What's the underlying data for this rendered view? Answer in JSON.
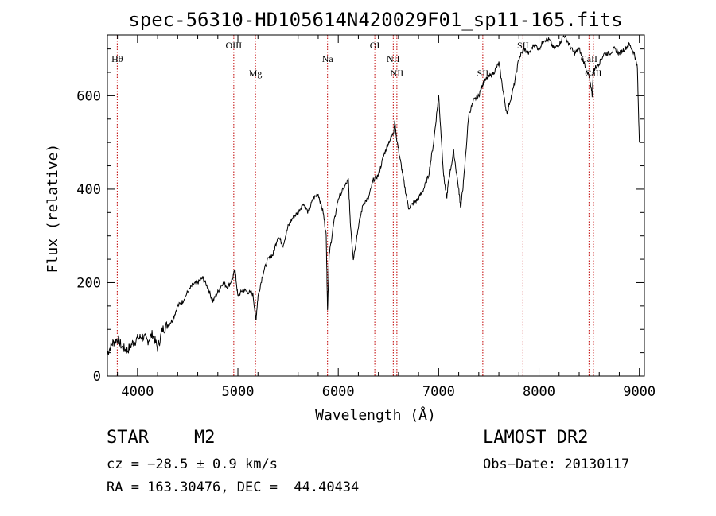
{
  "chart_data": {
    "type": "line",
    "title": "spec-56310-HD105614N420029F01_sp11-165.fits",
    "xlabel": "Wavelength (Å)",
    "ylabel": "Flux (relative)",
    "xlim": [
      3700,
      9050
    ],
    "ylim": [
      0,
      730
    ],
    "xticks": [
      4000,
      5000,
      6000,
      7000,
      8000,
      9000
    ],
    "yticks": [
      0,
      200,
      400,
      600
    ],
    "grid": false,
    "series": [
      {
        "x": [
          3700,
          3750,
          3800,
          3850,
          3900,
          3950,
          4000,
          4050,
          4100,
          4150,
          4200,
          4250,
          4300,
          4350,
          4400,
          4450,
          4500,
          4550,
          4600,
          4650,
          4700,
          4750,
          4800,
          4850,
          4900,
          4950,
          4970,
          5000,
          5050,
          5100,
          5150,
          5180,
          5200,
          5250,
          5300,
          5350,
          5400,
          5450,
          5500,
          5550,
          5600,
          5650,
          5700,
          5750,
          5800,
          5850,
          5880,
          5893,
          5910,
          5950,
          6000,
          6050,
          6100,
          6120,
          6150,
          6200,
          6250,
          6300,
          6350,
          6400,
          6450,
          6500,
          6550,
          6563,
          6580,
          6620,
          6650,
          6700,
          6750,
          6800,
          6850,
          6900,
          6950,
          7000,
          7050,
          7080,
          7100,
          7150,
          7200,
          7220,
          7250,
          7300,
          7350,
          7400,
          7430,
          7450,
          7500,
          7550,
          7600,
          7650,
          7680,
          7700,
          7750,
          7800,
          7850,
          7900,
          7950,
          8000,
          8050,
          8100,
          8150,
          8200,
          8250,
          8300,
          8350,
          8400,
          8450,
          8500,
          8530,
          8540,
          8560,
          8600,
          8650,
          8700,
          8750,
          8800,
          8850,
          8900,
          8950,
          8980,
          9000
        ],
        "y": [
          50,
          70,
          80,
          60,
          55,
          70,
          80,
          85,
          75,
          90,
          60,
          100,
          110,
          120,
          150,
          160,
          180,
          195,
          200,
          210,
          190,
          160,
          180,
          200,
          190,
          210,
          230,
          170,
          185,
          180,
          175,
          120,
          170,
          220,
          250,
          260,
          300,
          280,
          320,
          340,
          350,
          370,
          350,
          380,
          390,
          350,
          300,
          140,
          260,
          320,
          380,
          400,
          420,
          330,
          250,
          320,
          370,
          380,
          420,
          430,
          470,
          500,
          520,
          545,
          510,
          460,
          420,
          360,
          370,
          380,
          400,
          430,
          500,
          600,
          430,
          380,
          420,
          480,
          400,
          360,
          420,
          560,
          590,
          600,
          620,
          630,
          640,
          650,
          670,
          600,
          560,
          580,
          620,
          680,
          700,
          690,
          710,
          700,
          720,
          720,
          700,
          710,
          730,
          710,
          690,
          700,
          670,
          640,
          600,
          650,
          660,
          670,
          690,
          690,
          700,
          690,
          700,
          710,
          690,
          660,
          500
        ]
      }
    ],
    "lines": [
      {
        "label": "Hθ",
        "x": 3798,
        "row": 1
      },
      {
        "label": "OIII",
        "x": 4959,
        "row": 0
      },
      {
        "label": "Mg",
        "x": 5175,
        "row": 2
      },
      {
        "label": "Na",
        "x": 5893,
        "row": 1
      },
      {
        "label": "OI",
        "x": 6364,
        "row": 0
      },
      {
        "label": "NII",
        "x": 6548,
        "row": 1
      },
      {
        "label": "NII",
        "x": 6584,
        "row": 2
      },
      {
        "label": "SII",
        "x": 7440,
        "row": 2
      },
      {
        "label": "SII",
        "x": 7840,
        "row": 0
      },
      {
        "label": "CaII",
        "x": 8498,
        "row": 1
      },
      {
        "label": "CaII",
        "x": 8542,
        "row": 2
      }
    ]
  },
  "info": {
    "object_class": "STAR",
    "subclass": "M2",
    "survey": "LAMOST DR2",
    "cz": "cz = −28.5 ± 0.9 km/s",
    "obs_date": "Obs−Date: 20130117",
    "coords": "RA = 163.30476, DEC =  44.40434"
  },
  "colors": {
    "spectrum": "#000000",
    "line_markers": "#c00000",
    "axes": "#000000",
    "background": "#ffffff"
  }
}
